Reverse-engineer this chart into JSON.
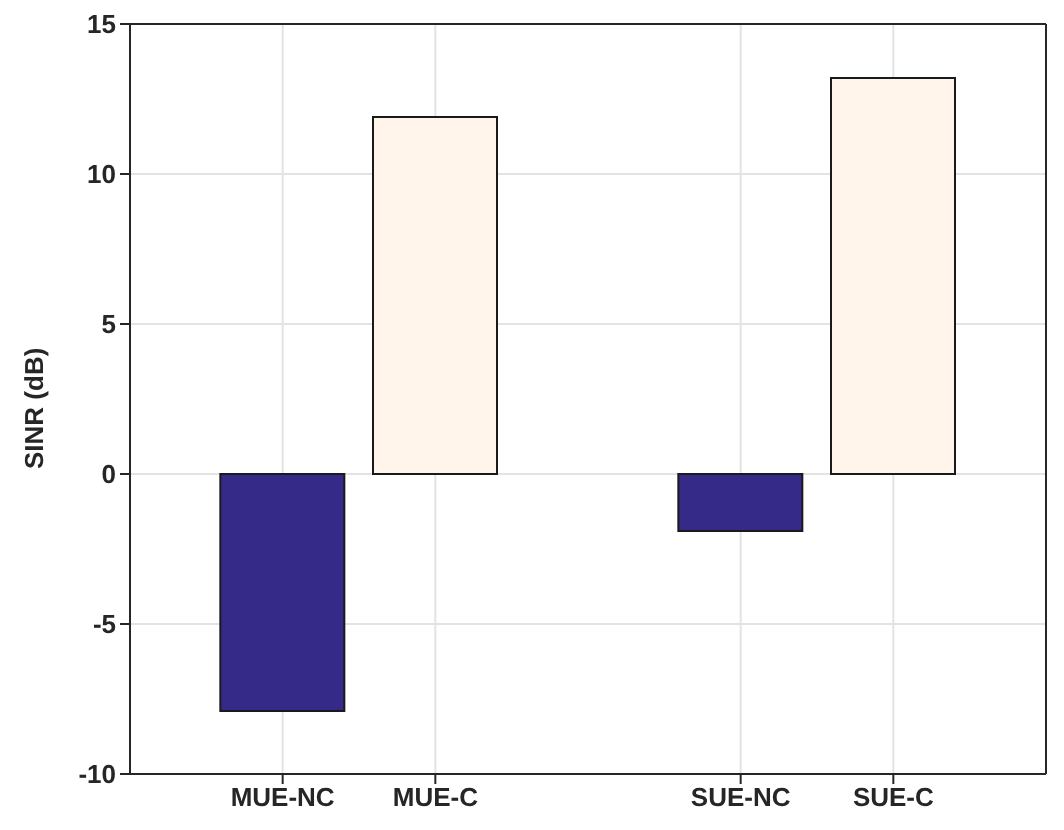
{
  "chart_data": {
    "type": "bar",
    "ylabel": "SINR (dB)",
    "categories": [
      "MUE-NC",
      "MUE-C",
      null,
      "SUE-NC",
      "SUE-C"
    ],
    "values": [
      -7.9,
      11.9,
      null,
      -1.9,
      13.2
    ],
    "colors": [
      "#352a87",
      "#fff5eb",
      null,
      "#352a87",
      "#fff5eb"
    ],
    "ylim": [
      -10,
      15
    ],
    "yticks": [
      -10,
      -5,
      0,
      5,
      10,
      15
    ],
    "grid": true
  }
}
